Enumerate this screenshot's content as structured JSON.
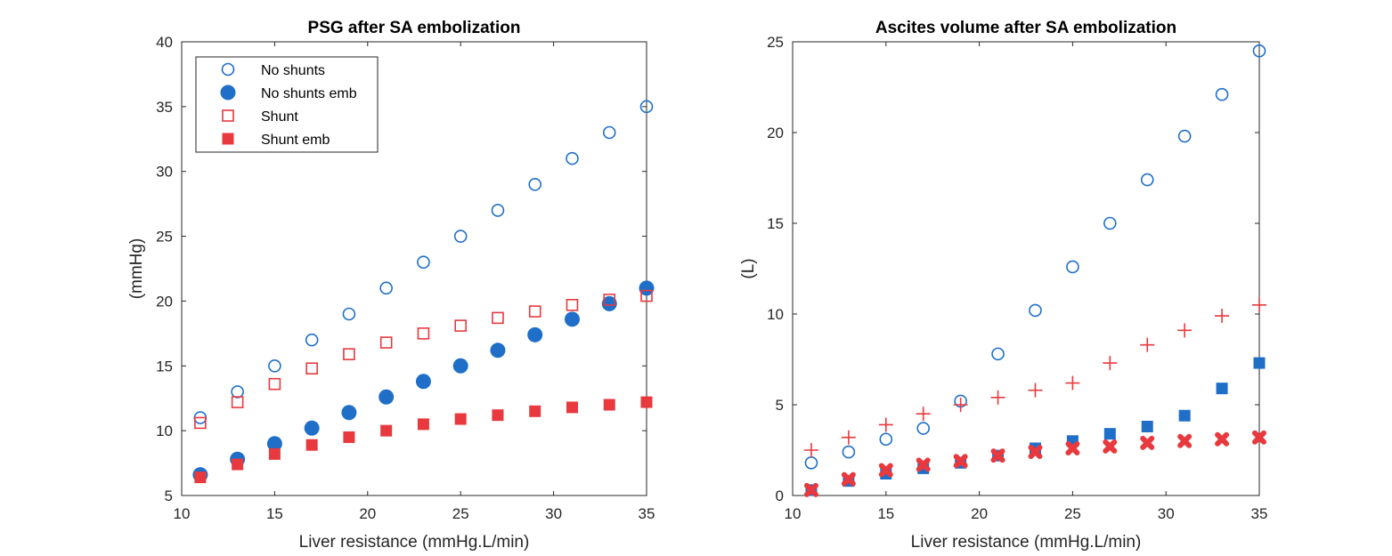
{
  "chart_data": [
    {
      "type": "scatter",
      "title": "PSG after SA embolization",
      "xlabel": "Liver resistance (mmHg.L/min)",
      "ylabel": "(mmHg)",
      "xlim": [
        10,
        35
      ],
      "ylim": [
        5,
        40
      ],
      "xticks": [
        10,
        15,
        20,
        25,
        30,
        35
      ],
      "yticks": [
        5,
        10,
        15,
        20,
        25,
        30,
        35,
        40
      ],
      "grid": false,
      "legend": "top-left",
      "x": [
        11,
        13,
        15,
        17,
        19,
        21,
        23,
        25,
        27,
        29,
        31,
        33,
        35
      ],
      "series": [
        {
          "name": "No shunts",
          "marker": "circle-open",
          "color": "#1f6fc8",
          "values": [
            11,
            13,
            15,
            17,
            19,
            21,
            23,
            25,
            27,
            29,
            31,
            33,
            35
          ]
        },
        {
          "name": "No shunts emb",
          "marker": "circle-filled",
          "color": "#1f6fc8",
          "values": [
            6.6,
            7.8,
            9.0,
            10.2,
            11.4,
            12.6,
            13.8,
            15.0,
            16.2,
            17.4,
            18.6,
            19.8,
            21.0
          ]
        },
        {
          "name": "Shunt",
          "marker": "square-open",
          "color": "#e8393e",
          "values": [
            10.6,
            12.2,
            13.6,
            14.8,
            15.9,
            16.8,
            17.5,
            18.1,
            18.7,
            19.2,
            19.7,
            20.1,
            20.4
          ]
        },
        {
          "name": "Shunt emb",
          "marker": "square-filled",
          "color": "#e8393e",
          "values": [
            6.4,
            7.4,
            8.2,
            8.9,
            9.5,
            10.0,
            10.5,
            10.9,
            11.2,
            11.5,
            11.8,
            12.0,
            12.2
          ]
        }
      ]
    },
    {
      "type": "scatter",
      "title": "Ascites volume after SA embolization",
      "xlabel": "Liver resistance (mmHg.L/min)",
      "ylabel": "(L)",
      "xlim": [
        10,
        35
      ],
      "ylim": [
        0,
        25
      ],
      "xticks": [
        10,
        15,
        20,
        25,
        30,
        35
      ],
      "yticks": [
        0,
        5,
        10,
        15,
        20,
        25
      ],
      "grid": false,
      "x": [
        11,
        13,
        15,
        17,
        19,
        21,
        23,
        25,
        27,
        29,
        31,
        33,
        35
      ],
      "series": [
        {
          "marker": "circle-open",
          "color": "#1f6fc8",
          "values": [
            1.8,
            2.4,
            3.1,
            3.7,
            5.2,
            7.8,
            10.2,
            12.6,
            15.0,
            17.4,
            19.8,
            22.1,
            24.5
          ]
        },
        {
          "marker": "square-filled",
          "color": "#1f6fc8",
          "values": [
            0.3,
            0.8,
            1.2,
            1.5,
            1.8,
            2.2,
            2.6,
            3.0,
            3.4,
            3.8,
            4.4,
            5.9,
            7.3
          ]
        },
        {
          "marker": "plus",
          "color": "#e8393e",
          "values": [
            2.5,
            3.2,
            3.9,
            4.5,
            5.0,
            5.4,
            5.8,
            6.2,
            7.3,
            8.3,
            9.1,
            9.9,
            10.5
          ]
        },
        {
          "marker": "x-filled",
          "color": "#e8393e",
          "values": [
            0.3,
            0.9,
            1.4,
            1.7,
            1.9,
            2.2,
            2.4,
            2.6,
            2.7,
            2.9,
            3.0,
            3.1,
            3.2
          ]
        }
      ]
    }
  ]
}
